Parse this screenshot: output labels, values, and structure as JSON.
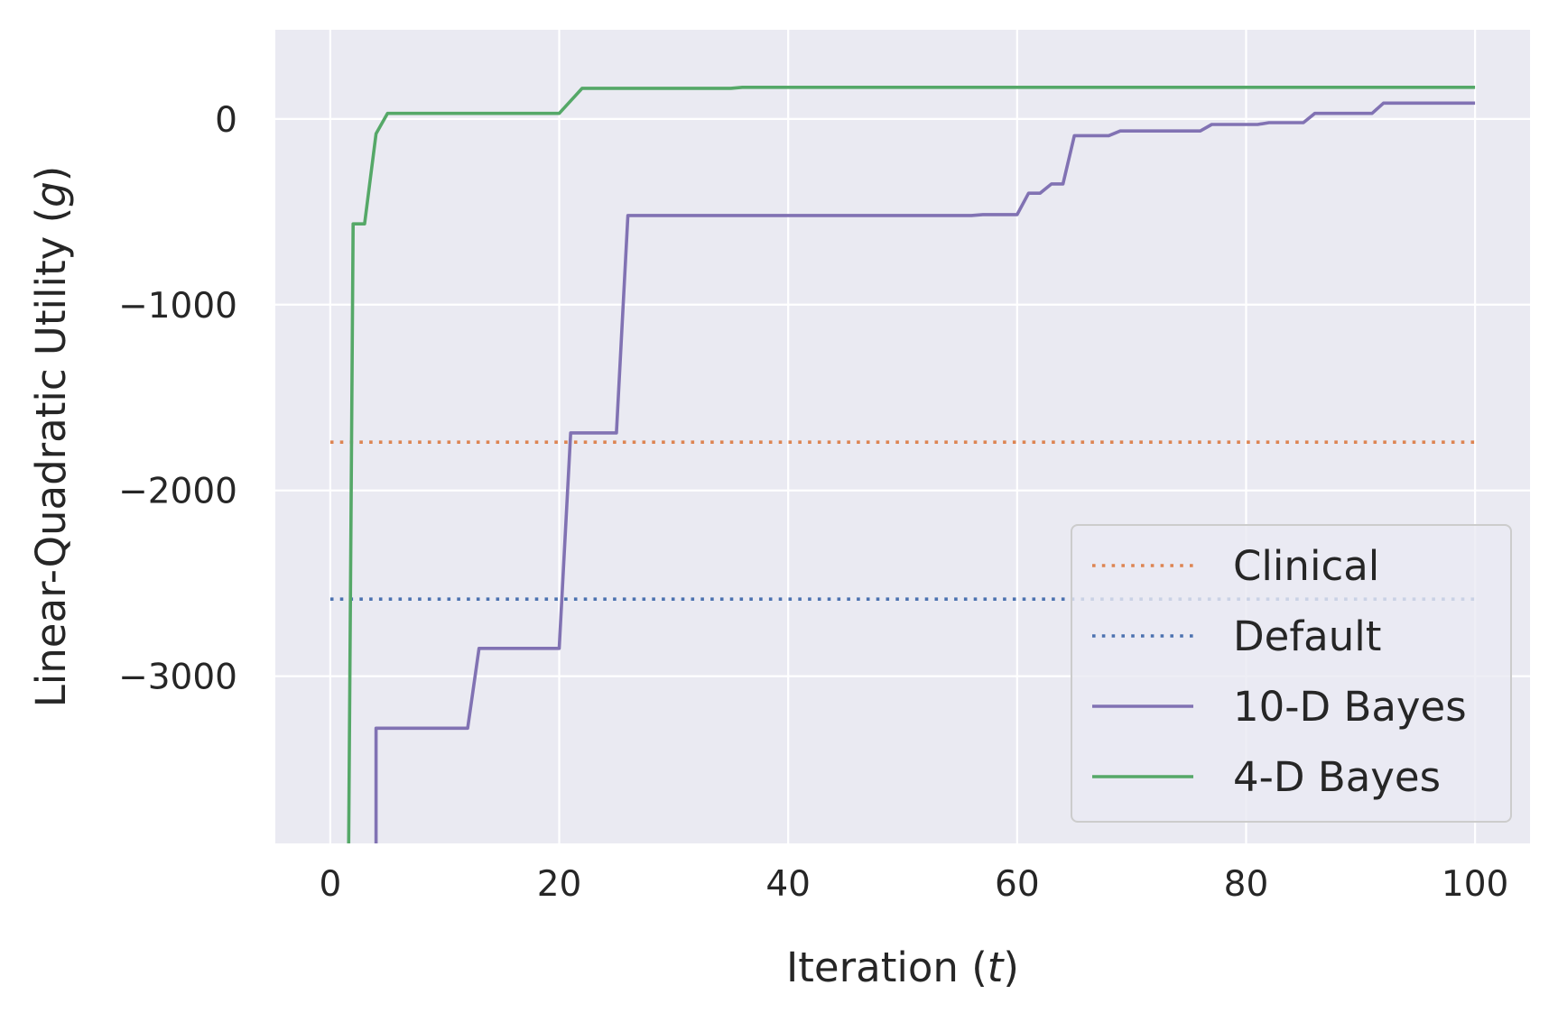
{
  "chart_data": {
    "type": "line",
    "title": "",
    "xlabel_text": "Iteration (",
    "xlabel_var": "t",
    "xlabel_close": ")",
    "ylabel_text": "Linear-Quadratic Utility (",
    "ylabel_var": "g",
    "ylabel_close": ")",
    "xlim": [
      -4.8,
      104.8
    ],
    "ylim": [
      -3900,
      480
    ],
    "xticks": [
      0,
      20,
      40,
      60,
      80,
      100
    ],
    "xtick_labels": [
      "0",
      "20",
      "40",
      "60",
      "80",
      "100"
    ],
    "yticks": [
      0,
      -1000,
      -2000,
      -3000
    ],
    "ytick_labels": [
      "0",
      "−1000",
      "−2000",
      "−3000"
    ],
    "grid": true,
    "legend_position": "lower-right",
    "colors": {
      "background": "#eaeaf2",
      "grid": "#ffffff",
      "clinical": "#dd8452",
      "default": "#4c72b0",
      "bayes10": "#8172b3",
      "bayes4": "#55a868",
      "text": "#262626"
    },
    "series": [
      {
        "name": "Clinical",
        "style": "dotted",
        "color_key": "clinical",
        "x": [
          0,
          100
        ],
        "y": [
          -1740,
          -1740
        ]
      },
      {
        "name": "Default",
        "style": "dotted",
        "color_key": "default",
        "x": [
          0,
          100
        ],
        "y": [
          -2585,
          -2585
        ]
      },
      {
        "name": "10-D Bayes",
        "style": "solid",
        "color_key": "bayes10",
        "x": [
          4,
          4,
          12,
          13,
          20,
          21,
          25,
          26,
          56,
          57,
          60,
          61,
          62,
          63,
          64,
          65,
          68,
          69,
          76,
          77,
          81,
          82,
          85,
          86,
          91,
          92,
          100
        ],
        "y": [
          -3950,
          -3280,
          -3280,
          -2850,
          -2850,
          -1690,
          -1690,
          -520,
          -520,
          -515,
          -515,
          -400,
          -400,
          -350,
          -350,
          -90,
          -90,
          -65,
          -65,
          -30,
          -30,
          -20,
          -20,
          30,
          30,
          85,
          85
        ]
      },
      {
        "name": "4-D Bayes",
        "style": "solid",
        "color_key": "bayes4",
        "x": [
          1.6,
          2,
          3,
          4,
          5,
          20,
          22,
          35,
          36,
          100
        ],
        "y": [
          -3950,
          -565,
          -565,
          -80,
          30,
          30,
          165,
          165,
          170,
          170
        ]
      }
    ]
  }
}
